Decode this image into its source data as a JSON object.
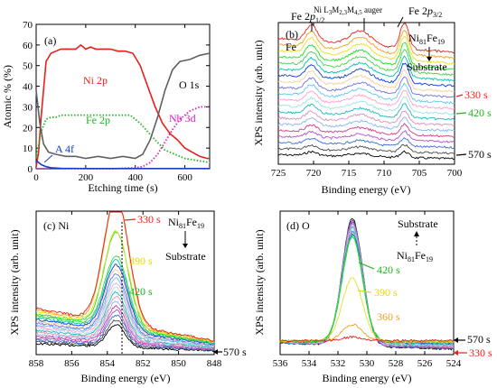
{
  "colors": {
    "ni": "#e8201a",
    "fe": "#1db31d",
    "nb": "#e020c0",
    "o": "#606060",
    "a": "#1a3cc8",
    "time_330": "#e8201a",
    "time_360": "#f0a020",
    "time_390": "#e8d800",
    "time_420": "#1db31d",
    "time_570": "#000000",
    "spectra": [
      "#000000",
      "#4a4a4a",
      "#3a6fd8",
      "#b04fd0",
      "#d23c8a",
      "#8ab4f0",
      "#e08fb8",
      "#20b8c0",
      "#a0e0e0",
      "#ff9fd0",
      "#60c8f0",
      "#7070e8",
      "#f0d0a0",
      "#0a3cdc",
      "#00c0b0",
      "#4ad04a",
      "#20e020",
      "#e8e020",
      "#f0a020",
      "#e8201a"
    ]
  },
  "chart_data": [
    {
      "id": "a",
      "type": "line",
      "panel_label": "(a)",
      "xlabel": "Etching time (s)",
      "ylabel": "Atomic % (%)",
      "xlim": [
        0,
        700
      ],
      "ylim": [
        0,
        70
      ],
      "xticks": [
        0,
        200,
        400,
        600
      ],
      "yticks": [
        0,
        10,
        20,
        30,
        40,
        50,
        60,
        70
      ],
      "series": [
        {
          "name": "Ni 2p",
          "color": "#e8201a",
          "style": "solid",
          "x": [
            0,
            10,
            20,
            40,
            60,
            80,
            100,
            130,
            160,
            180,
            200,
            220,
            240,
            270,
            300,
            330,
            360,
            390,
            420,
            450,
            480,
            510,
            540,
            570,
            600,
            630,
            660,
            690,
            700
          ],
          "y": [
            1,
            8,
            25,
            52,
            56,
            57,
            58,
            58,
            58,
            60,
            58,
            59,
            58,
            58,
            58,
            57,
            57,
            56,
            50,
            40,
            30,
            22,
            17,
            14,
            10,
            8,
            6,
            5,
            5
          ]
        },
        {
          "name": "Fe 2p",
          "color": "#1db31d",
          "style": "dotted",
          "x": [
            0,
            20,
            40,
            60,
            80,
            100,
            150,
            200,
            250,
            300,
            340,
            380,
            420,
            450,
            480,
            520,
            560,
            600,
            650,
            700
          ],
          "y": [
            5,
            18,
            24,
            25,
            25,
            26,
            26,
            26,
            26,
            26,
            26,
            26,
            22,
            18,
            14,
            9,
            7,
            5,
            4,
            3
          ]
        },
        {
          "name": "O 1s",
          "color": "#606060",
          "style": "solid",
          "x": [
            0,
            15,
            30,
            50,
            80,
            120,
            160,
            200,
            250,
            300,
            350,
            400,
            430,
            460,
            490,
            520,
            550,
            580,
            620,
            660,
            700
          ],
          "y": [
            38,
            22,
            12,
            8,
            7,
            6,
            6,
            5,
            6,
            5,
            6,
            5,
            7,
            14,
            25,
            38,
            48,
            52,
            53,
            55,
            56
          ]
        },
        {
          "name": "Nb 3d",
          "color": "#e020c0",
          "style": "dotted",
          "x": [
            0,
            100,
            200,
            300,
            400,
            430,
            460,
            490,
            520,
            550,
            580,
            620,
            660,
            700
          ],
          "y": [
            0,
            0,
            0,
            0,
            0.5,
            1,
            3,
            7,
            13,
            19,
            24,
            28,
            30,
            30
          ]
        },
        {
          "name": "A 4f",
          "color": "#1a3cc8",
          "style": "solid",
          "x": [
            0,
            20,
            40,
            60,
            100,
            200,
            300,
            400,
            500,
            600,
            700
          ],
          "y": [
            4,
            2,
            1,
            0.5,
            0.2,
            0.1,
            0.1,
            0.1,
            0.1,
            0.1,
            0.1
          ]
        }
      ],
      "annotations": [
        {
          "text": "Ni 2p",
          "color": "#e8201a"
        },
        {
          "text": "Fe 2p",
          "color": "#1db31d"
        },
        {
          "text": "O 1s",
          "color": "#000000"
        },
        {
          "text": "Nb 3d",
          "color": "#e020c0"
        },
        {
          "text": "A 4f",
          "color": "#1a3cc8"
        }
      ]
    },
    {
      "id": "b",
      "type": "line",
      "panel_label": "(b)",
      "element_label": "Fe",
      "xlabel": "Binding energy (eV)",
      "ylabel": "XPS intensity (arb. unit)",
      "xlim": [
        725,
        700
      ],
      "xticks": [
        725,
        720,
        715,
        710,
        705,
        700
      ],
      "peaks": {
        "fe_half": 720.3,
        "auger": 713.3,
        "fe_three_half": 707.1
      },
      "curve_count": 20,
      "annotations": [
        "Fe 2p1/2",
        "Ni L3M2,3M4,5 auger",
        "Fe 2p3/2",
        "Ni81Fe19",
        "Substrate"
      ],
      "time_labels": [
        {
          "text": "330 s",
          "color": "#e8201a"
        },
        {
          "text": "420 s",
          "color": "#1db31d"
        },
        {
          "text": "570 s",
          "color": "#000000"
        }
      ]
    },
    {
      "id": "c",
      "type": "line",
      "panel_label": "(c) Ni",
      "xlabel": "Binding energy (eV)",
      "ylabel": "XPS intensity (arb. unit)",
      "xlim": [
        858,
        848
      ],
      "xticks": [
        858,
        856,
        854,
        852,
        850,
        848
      ],
      "peak": 853.5,
      "curve_count": 20,
      "annotations": [
        "Ni81Fe19",
        "Substrate"
      ],
      "time_labels": [
        {
          "text": "330 s",
          "color": "#e8201a"
        },
        {
          "text": "390 s",
          "color": "#e8d800"
        },
        {
          "text": "420 s",
          "color": "#1db31d"
        },
        {
          "text": "570 s",
          "color": "#000000"
        }
      ]
    },
    {
      "id": "d",
      "type": "line",
      "panel_label": "(d) O",
      "xlabel": "Binding energy (eV)",
      "ylabel": "XPS intensity (arb. unit)",
      "xlim": [
        536,
        524
      ],
      "xticks": [
        536,
        534,
        532,
        530,
        528,
        526,
        524
      ],
      "peak": 531,
      "curve_count": 20,
      "annotations": [
        "Substrate",
        "Ni81Fe19"
      ],
      "time_labels": [
        {
          "text": "420 s",
          "color": "#1db31d"
        },
        {
          "text": "390 s",
          "color": "#e8d800"
        },
        {
          "text": "360 s",
          "color": "#f0a020"
        },
        {
          "text": "570 s",
          "color": "#000000"
        },
        {
          "text": "330 s",
          "color": "#e8201a"
        }
      ]
    }
  ]
}
